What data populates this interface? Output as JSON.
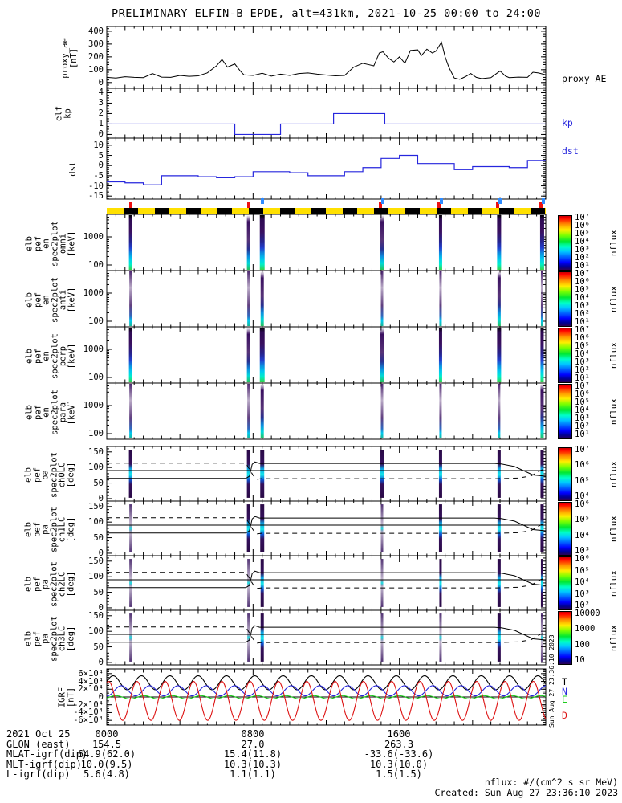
{
  "title": "PRELIMINARY ELFIN-B EPDE, alt=431km, 2021-10-25 00:00 to 24:00",
  "footer": {
    "units_note": "nflux: #/(cm^2 s sr MeV)",
    "created": "Created: Sun Aug 27 23:36:10 2023",
    "created_sidebar": "Sun Aug 27 23:36:10 2023"
  },
  "bottom_rows": [
    {
      "label": "2021 Oct 25",
      "values": [
        "0000",
        "0800",
        "1600"
      ]
    },
    {
      "label": "GLON (east)",
      "values": [
        "154.5",
        "27.0",
        "263.3"
      ]
    },
    {
      "label": "MLAT-igrf(dip)",
      "values": [
        "64.9(62.0)",
        "15.4(11.8)",
        "-33.6(-33.6)"
      ]
    },
    {
      "label": "MLT-igrf(dip)",
      "values": [
        "10.0(9.5)",
        "10.3(10.3)",
        "10.3(10.0)"
      ]
    },
    {
      "label": "L-igrf(dip)",
      "values": [
        "5.6(4.8)",
        "1.1(1.1)",
        "1.5(1.5)"
      ]
    }
  ],
  "orbit_bar": {
    "yellow": "#ffe000",
    "black": "#000000",
    "red_tick_color": "#ee1111",
    "blue_tick_color": "#2e8bff",
    "red_tick_hours": [
      1.3,
      7.75,
      14.95,
      18.15,
      21.35,
      23.72
    ],
    "blue_tick_hours": [
      8.5,
      15.1,
      18.3,
      21.5,
      23.85
    ]
  },
  "pa_lines": {
    "solid_center": [
      [
        0,
        90
      ],
      [
        24,
        90
      ]
    ],
    "solid_losscone": [
      [
        0,
        65
      ],
      [
        7.6,
        65
      ],
      [
        7.8,
        72
      ],
      [
        7.95,
        110
      ],
      [
        8.1,
        118
      ],
      [
        8.35,
        113
      ],
      [
        21.2,
        113
      ],
      [
        21.6,
        111
      ],
      [
        22.3,
        103
      ],
      [
        23.3,
        76
      ],
      [
        24,
        72
      ]
    ],
    "dashed_antilosscone": [
      [
        0,
        114
      ],
      [
        7.6,
        114
      ],
      [
        8.0,
        75
      ],
      [
        8.2,
        62
      ],
      [
        8.45,
        64
      ],
      [
        21.3,
        64
      ],
      [
        22.5,
        66
      ],
      [
        23.2,
        73
      ],
      [
        23.7,
        90
      ],
      [
        24,
        98
      ]
    ]
  },
  "chart_data": [
    {
      "id": "proxy_ae",
      "type": "line",
      "left_label": "proxy_ae\n[nT]",
      "right_label": "proxy_AE",
      "line_color": "#000000",
      "ylim": [
        -45,
        437
      ],
      "yticks": [
        {
          "v": 0,
          "t": "0"
        },
        {
          "v": 100,
          "t": "100"
        },
        {
          "v": 200,
          "t": "200"
        },
        {
          "v": 300,
          "t": "300"
        },
        {
          "v": 400,
          "t": "400"
        }
      ],
      "x_hours": [
        0,
        0.5,
        1,
        1.5,
        2,
        2.5,
        3,
        3.5,
        4,
        4.5,
        5,
        5.5,
        6,
        6.3,
        6.6,
        7,
        7.3,
        7.5,
        8,
        8.5,
        9,
        9.5,
        10,
        10.5,
        11,
        11.5,
        12,
        12.5,
        13,
        13.5,
        14,
        14.3,
        14.6,
        14.9,
        15.1,
        15.4,
        15.7,
        16,
        16.3,
        16.6,
        17,
        17.2,
        17.5,
        17.8,
        18,
        18.3,
        18.5,
        18.7,
        19,
        19.3,
        19.6,
        19.9,
        20.2,
        20.5,
        21,
        21.5,
        21.8,
        22,
        22.5,
        23,
        23.3,
        23.6,
        24
      ],
      "values": [
        40,
        35,
        45,
        40,
        38,
        70,
        42,
        40,
        55,
        48,
        52,
        75,
        130,
        180,
        120,
        145,
        90,
        60,
        55,
        72,
        50,
        65,
        55,
        70,
        75,
        65,
        58,
        52,
        55,
        120,
        150,
        140,
        130,
        230,
        240,
        190,
        160,
        200,
        150,
        250,
        255,
        210,
        260,
        230,
        245,
        315,
        200,
        120,
        35,
        25,
        45,
        70,
        40,
        30,
        38,
        90,
        50,
        38,
        42,
        40,
        80,
        75,
        60
      ]
    },
    {
      "id": "kp",
      "type": "step",
      "left_label": "elf\nkp",
      "right_label": "kp",
      "line_color": "#2626dd",
      "ylim": [
        -0.35,
        4.42
      ],
      "yticks": [
        {
          "v": 0,
          "t": "0"
        },
        {
          "v": 1,
          "t": "1"
        },
        {
          "v": 2,
          "t": "2"
        },
        {
          "v": 3,
          "t": "3"
        },
        {
          "v": 4,
          "t": "4"
        }
      ],
      "steps": [
        [
          0,
          1
        ],
        [
          7,
          0
        ],
        [
          9.5,
          1
        ],
        [
          12.4,
          2
        ],
        [
          15.2,
          1
        ],
        [
          24,
          1
        ]
      ]
    },
    {
      "id": "dst",
      "type": "step",
      "left_label": "dst",
      "right_label": "dst",
      "line_color": "#2626dd",
      "ylim": [
        -16.5,
        13.5
      ],
      "yticks": [
        {
          "v": 10,
          "t": "10"
        },
        {
          "v": 5,
          "t": "5"
        },
        {
          "v": 0,
          "t": "0"
        },
        {
          "v": -5,
          "t": "-5"
        },
        {
          "v": -10,
          "t": "-10"
        },
        {
          "v": -15,
          "t": "-15"
        }
      ],
      "steps": [
        [
          0,
          -8
        ],
        [
          1,
          -8.5
        ],
        [
          2,
          -9.5
        ],
        [
          3,
          -5
        ],
        [
          4,
          -5
        ],
        [
          5,
          -5.5
        ],
        [
          6,
          -6
        ],
        [
          7,
          -5.5
        ],
        [
          8,
          -3
        ],
        [
          9,
          -3
        ],
        [
          10,
          -3.5
        ],
        [
          11,
          -5
        ],
        [
          12,
          -5
        ],
        [
          13,
          -3
        ],
        [
          14,
          -1
        ],
        [
          15,
          3.5
        ],
        [
          16,
          5
        ],
        [
          17,
          1
        ],
        [
          18,
          1
        ],
        [
          19,
          -2
        ],
        [
          20,
          -0.5
        ],
        [
          21,
          -0.5
        ],
        [
          22,
          -1
        ],
        [
          23,
          2.5
        ],
        [
          24,
          2.5
        ]
      ]
    },
    {
      "id": "en_omni",
      "type": "spec_energy",
      "left_label": "elb\npef\nen\nspec2plot\nomni\n[keV]",
      "yticks": [
        {
          "f": 0.4,
          "t": "1000"
        },
        {
          "f": 0.9,
          "t": "100"
        }
      ],
      "colorbar": {
        "labels": [
          "10⁷",
          "10⁶",
          "10⁵",
          "10⁴",
          "10³",
          "10²",
          "10¹"
        ],
        "title": "nflux"
      },
      "streaks": [
        {
          "h": 1.3,
          "s": "bright",
          "w": 4
        },
        {
          "h": 7.75,
          "s": "medium",
          "w": 4
        },
        {
          "h": 8.5,
          "s": "bright",
          "w": 6
        },
        {
          "h": 15.05,
          "s": "medium",
          "w": 4
        },
        {
          "h": 18.25,
          "s": "bright",
          "w": 4
        },
        {
          "h": 21.45,
          "s": "bright",
          "w": 5
        },
        {
          "h": 23.8,
          "s": "bright",
          "w": 5
        }
      ]
    },
    {
      "id": "en_anti",
      "type": "spec_energy",
      "left_label": "elb\npef\nen\nspec2plot\nanti\n[keV]",
      "yticks": [
        {
          "f": 0.4,
          "t": "1000"
        },
        {
          "f": 0.9,
          "t": "100"
        }
      ],
      "colorbar": {
        "labels": [
          "10⁷",
          "10⁶",
          "10⁵",
          "10⁴",
          "10³",
          "10²",
          "10¹"
        ],
        "title": "nflux"
      },
      "streaks": [
        {
          "h": 1.3,
          "s": "faint",
          "w": 3
        },
        {
          "h": 7.75,
          "s": "faint",
          "w": 3
        },
        {
          "h": 8.5,
          "s": "medium",
          "w": 4
        },
        {
          "h": 15.05,
          "s": "faint",
          "w": 3
        },
        {
          "h": 18.25,
          "s": "faint",
          "w": 3
        },
        {
          "h": 21.45,
          "s": "medium",
          "w": 4
        },
        {
          "h": 23.8,
          "s": "faint",
          "w": 3
        }
      ]
    },
    {
      "id": "en_perp",
      "type": "spec_energy",
      "left_label": "elb\npef\nen\nspec2plot\nperp\n[keV]",
      "yticks": [
        {
          "f": 0.4,
          "t": "1000"
        },
        {
          "f": 0.9,
          "t": "100"
        }
      ],
      "colorbar": {
        "labels": [
          "10⁷",
          "10⁶",
          "10⁵",
          "10⁴",
          "10³",
          "10²",
          "10¹"
        ],
        "title": "nflux"
      },
      "streaks": [
        {
          "h": 1.3,
          "s": "bright",
          "w": 4
        },
        {
          "h": 7.75,
          "s": "medium",
          "w": 4
        },
        {
          "h": 8.5,
          "s": "bright",
          "w": 6
        },
        {
          "h": 15.05,
          "s": "medium",
          "w": 4
        },
        {
          "h": 18.25,
          "s": "bright",
          "w": 4
        },
        {
          "h": 21.45,
          "s": "bright",
          "w": 5
        },
        {
          "h": 23.8,
          "s": "bright",
          "w": 4
        }
      ]
    },
    {
      "id": "en_para",
      "type": "spec_energy",
      "left_label": "elb\npef\nen\nspec2plot\npara\n[keV]",
      "yticks": [
        {
          "f": 0.4,
          "t": "1000"
        },
        {
          "f": 0.9,
          "t": "100"
        }
      ],
      "colorbar": {
        "labels": [
          "10⁷",
          "10⁶",
          "10⁵",
          "10⁴",
          "10³",
          "10²",
          "10¹"
        ],
        "title": "nflux"
      },
      "streaks": [
        {
          "h": 1.3,
          "s": "faint",
          "w": 3
        },
        {
          "h": 7.75,
          "s": "faint",
          "w": 3
        },
        {
          "h": 8.5,
          "s": "medium",
          "w": 4
        },
        {
          "h": 15.05,
          "s": "faint",
          "w": 3
        },
        {
          "h": 18.25,
          "s": "faint",
          "w": 3
        },
        {
          "h": 21.45,
          "s": "faint",
          "w": 3
        },
        {
          "h": 23.8,
          "s": "medium",
          "w": 4
        }
      ]
    },
    {
      "id": "pa_ch0",
      "type": "spec_pa",
      "left_label": "elb\npef\npa\nspec2plot\nch0LC\n[deg]",
      "yticks": [
        {
          "v": 150,
          "t": "150"
        },
        {
          "v": 100,
          "t": "100"
        },
        {
          "v": 50,
          "t": "50"
        },
        {
          "v": 0,
          "t": "0"
        }
      ],
      "colorbar": {
        "labels": [
          "10⁷",
          "10⁶",
          "10⁵",
          "10⁴"
        ],
        "title": "nflux"
      },
      "streaks": [
        {
          "h": 1.3,
          "s": "pa",
          "w": 4
        },
        {
          "h": 7.75,
          "s": "pa",
          "w": 4
        },
        {
          "h": 8.5,
          "s": "pa",
          "w": 5
        },
        {
          "h": 15.05,
          "s": "pa",
          "w": 4
        },
        {
          "h": 18.25,
          "s": "pa",
          "w": 4
        },
        {
          "h": 21.45,
          "s": "pa",
          "w": 4
        },
        {
          "h": 23.8,
          "s": "pa",
          "w": 4
        }
      ]
    },
    {
      "id": "pa_ch1",
      "type": "spec_pa",
      "left_label": "elb\npef\npa\nspec2plot\nch1LC\n[deg]",
      "yticks": [
        {
          "v": 150,
          "t": "150"
        },
        {
          "v": 100,
          "t": "100"
        },
        {
          "v": 50,
          "t": "50"
        },
        {
          "v": 0,
          "t": "0"
        }
      ],
      "colorbar": {
        "labels": [
          "10⁶",
          "10⁵",
          "10⁴",
          "10³"
        ],
        "title": "nflux"
      },
      "streaks": [
        {
          "h": 1.3,
          "s": "pafaint",
          "w": 3
        },
        {
          "h": 7.75,
          "s": "pa",
          "w": 4
        },
        {
          "h": 8.5,
          "s": "pa",
          "w": 5
        },
        {
          "h": 15.05,
          "s": "pafaint",
          "w": 3
        },
        {
          "h": 18.25,
          "s": "pa",
          "w": 4
        },
        {
          "h": 21.45,
          "s": "pa",
          "w": 4
        },
        {
          "h": 23.8,
          "s": "pa",
          "w": 4
        }
      ]
    },
    {
      "id": "pa_ch2",
      "type": "spec_pa",
      "left_label": "elb\npef\npa\nspec2plot\nch2LC\n[deg]",
      "yticks": [
        {
          "v": 150,
          "t": "150"
        },
        {
          "v": 100,
          "t": "100"
        },
        {
          "v": 50,
          "t": "50"
        },
        {
          "v": 0,
          "t": "0"
        }
      ],
      "colorbar": {
        "labels": [
          "10⁶",
          "10⁵",
          "10⁴",
          "10³",
          "10²"
        ],
        "title": "nflux"
      },
      "streaks": [
        {
          "h": 1.3,
          "s": "pafaint",
          "w": 3
        },
        {
          "h": 7.75,
          "s": "pafaint",
          "w": 3
        },
        {
          "h": 8.5,
          "s": "pa",
          "w": 4
        },
        {
          "h": 15.05,
          "s": "pafaint",
          "w": 3
        },
        {
          "h": 18.25,
          "s": "pa",
          "w": 3
        },
        {
          "h": 21.45,
          "s": "pa",
          "w": 4
        },
        {
          "h": 23.8,
          "s": "pa",
          "w": 3
        }
      ]
    },
    {
      "id": "pa_ch3",
      "type": "spec_pa",
      "left_label": "elb\npef\npa\nspec2plot\nch3LC\n[deg]",
      "yticks": [
        {
          "v": 150,
          "t": "150"
        },
        {
          "v": 100,
          "t": "100"
        },
        {
          "v": 50,
          "t": "50"
        },
        {
          "v": 0,
          "t": "0"
        }
      ],
      "colorbar": {
        "labels": [
          "10000",
          "1000",
          "100",
          "10"
        ],
        "title": "nflux"
      },
      "streaks": [
        {
          "h": 1.3,
          "s": "pafaint",
          "w": 3
        },
        {
          "h": 7.75,
          "s": "pafaint",
          "w": 3
        },
        {
          "h": 8.5,
          "s": "pa",
          "w": 4
        },
        {
          "h": 15.05,
          "s": "pafaint",
          "w": 3
        },
        {
          "h": 18.25,
          "s": "pafaint",
          "w": 3
        },
        {
          "h": 21.45,
          "s": "pa",
          "w": 4
        },
        {
          "h": 23.8,
          "s": "pafaint",
          "w": 3
        }
      ]
    },
    {
      "id": "igrf",
      "type": "igrf",
      "left_label": "IGRF\n[nT]",
      "ylim": [
        -72000,
        72000
      ],
      "yticks": [
        {
          "v": 60000,
          "t": "6×10⁴"
        },
        {
          "v": 40000,
          "t": "4×10⁴"
        },
        {
          "v": 20000,
          "t": "2×10⁴"
        },
        {
          "v": 0,
          "t": "0"
        },
        {
          "v": -20000,
          "t": "-2×10⁴"
        },
        {
          "v": -40000,
          "t": "-4×10⁴"
        },
        {
          "v": -60000,
          "t": "-6×10⁴"
        }
      ],
      "approx_waveform": "cosine",
      "components": [
        {
          "name": "T",
          "color": "#000000",
          "mean": 36500,
          "amp": 18000,
          "period_h": 1.548,
          "peak_h": 0.35
        },
        {
          "name": "N",
          "color": "#2626dd",
          "mean": 16000,
          "amp": 13000,
          "period_h": 1.548,
          "peak_h": 0.8
        },
        {
          "name": "E",
          "color": "#1ecc1e",
          "mean": -800,
          "amp": 4200,
          "period_h": 1.548,
          "peak_h": 0.5
        },
        {
          "name": "D",
          "color": "#dd1111",
          "mean": -10000,
          "amp": 50000,
          "period_h": 1.548,
          "peak_h": 0.1
        }
      ]
    }
  ]
}
